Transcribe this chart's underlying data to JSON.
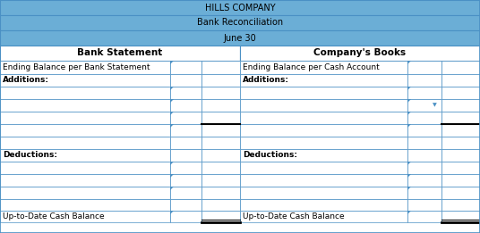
{
  "title1": "HILLS COMPANY",
  "title2": "Bank Reconciliation",
  "title3": "June 30",
  "header_left": "Bank Statement",
  "header_right": "Company's Books",
  "row1_left": "Ending Balance per Bank Statement",
  "row1_right": "Ending Balance per Cash Account",
  "row_additions_left": "Additions:",
  "row_additions_right": "Additions:",
  "row_deductions_left": "Deductions:",
  "row_deductions_right": "Deductions:",
  "row_final_left": "Up-to-Date Cash Balance",
  "row_final_right": "Up-to-Date Cash Balance",
  "header_bg": "#6BAED6",
  "subheader_bg": "#9ECAE1",
  "border_color": "#4A90C4",
  "black_border": "#000000",
  "title_fontsize": 7.0,
  "body_fontsize": 6.5,
  "col_header_fontsize": 7.5
}
